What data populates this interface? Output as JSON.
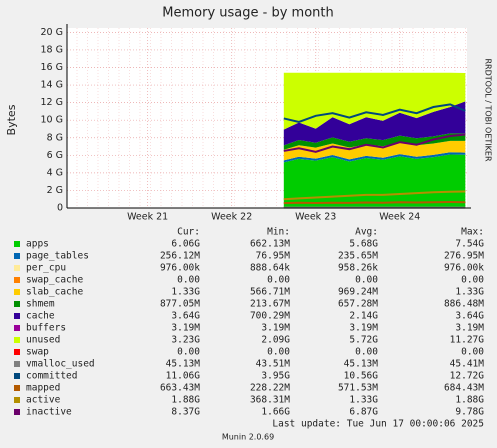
{
  "chart_data": {
    "type": "area",
    "title": "Memory usage - by month",
    "y_label": "Bytes",
    "side_label": "RRDTOOL / TOBI OETIKER",
    "x": [
      22.62,
      22.8,
      23.0,
      23.2,
      23.4,
      23.6,
      23.8,
      24.0,
      24.2,
      24.4,
      24.6,
      24.78
    ],
    "xlim": [
      20.04,
      24.8
    ],
    "xticks": [
      {
        "value": 21,
        "label": "Week 21"
      },
      {
        "value": 22,
        "label": "Week 22"
      },
      {
        "value": 23,
        "label": "Week 23"
      },
      {
        "value": 24,
        "label": "Week 24"
      }
    ],
    "ylim": [
      0,
      20.5
    ],
    "yticks": [
      0,
      {
        "value": 2,
        "label": "2 G"
      },
      {
        "value": 4,
        "label": "4 G"
      },
      {
        "value": 6,
        "label": "6 G"
      },
      {
        "value": 8,
        "label": "8 G"
      },
      {
        "value": 10,
        "label": "10 G"
      },
      {
        "value": 12,
        "label": "12 G"
      },
      {
        "value": 14,
        "label": "14 G"
      },
      {
        "value": 16,
        "label": "16 G"
      },
      {
        "value": 18,
        "label": "18 G"
      },
      {
        "value": 20,
        "label": "20 G"
      }
    ],
    "grid": true,
    "legend_headers": [
      "Cur:",
      "Min:",
      "Avg:",
      "Max:"
    ],
    "series": [
      {
        "name": "apps",
        "color": "#00cc00",
        "draw": "area",
        "values": [
          5.2,
          5.6,
          5.4,
          5.8,
          5.3,
          5.7,
          5.5,
          5.9,
          5.6,
          5.8,
          6.1,
          6.06
        ],
        "cur": "6.06G",
        "min": "662.13M",
        "avg": "5.68G",
        "max": "7.54G"
      },
      {
        "name": "page_tables",
        "color": "#0066b3",
        "draw": "area",
        "values": [
          0.23,
          0.24,
          0.23,
          0.24,
          0.24,
          0.24,
          0.23,
          0.24,
          0.24,
          0.25,
          0.25,
          0.25
        ],
        "cur": "256.12M",
        "min": "76.95M",
        "avg": "235.65M",
        "max": "276.95M"
      },
      {
        "name": "per_cpu",
        "color": "#ffeb99",
        "draw": "area",
        "values": [
          0.001,
          0.001,
          0.001,
          0.001,
          0.001,
          0.001,
          0.001,
          0.001,
          0.001,
          0.001,
          0.001,
          0.001
        ],
        "cur": "976.00k",
        "min": "888.64k",
        "avg": "958.26k",
        "max": "976.00k"
      },
      {
        "name": "swap_cache",
        "color": "#ff8000",
        "draw": "area",
        "values": [
          0,
          0,
          0,
          0,
          0,
          0,
          0,
          0,
          0,
          0,
          0,
          0
        ],
        "cur": "0.00",
        "min": "0.00",
        "avg": "0.00",
        "max": "0.00"
      },
      {
        "name": "slab_cache",
        "color": "#ffcc00",
        "draw": "area",
        "values": [
          1.2,
          1.3,
          1.25,
          1.3,
          1.35,
          1.3,
          1.3,
          1.35,
          1.3,
          1.3,
          1.3,
          1.33
        ],
        "cur": "1.33G",
        "min": "566.71M",
        "avg": "969.24M",
        "max": "1.33G"
      },
      {
        "name": "shmem",
        "color": "#008f00",
        "draw": "area",
        "values": [
          0.5,
          0.6,
          0.55,
          0.7,
          0.65,
          0.7,
          0.7,
          0.75,
          0.8,
          0.8,
          0.85,
          0.86
        ],
        "cur": "877.05M",
        "min": "213.67M",
        "avg": "657.28M",
        "max": "886.48M"
      },
      {
        "name": "cache",
        "color": "#330099",
        "draw": "area",
        "values": [
          1.8,
          2.0,
          1.6,
          2.3,
          2.0,
          2.4,
          2.2,
          2.6,
          2.3,
          2.8,
          3.0,
          3.64
        ],
        "cur": "3.64G",
        "min": "700.29M",
        "avg": "2.14G",
        "max": "3.64G"
      },
      {
        "name": "buffers",
        "color": "#990099",
        "draw": "area",
        "values": [
          0.003,
          0.003,
          0.003,
          0.003,
          0.003,
          0.003,
          0.003,
          0.003,
          0.003,
          0.003,
          0.003,
          0.003
        ],
        "cur": "3.19M",
        "min": "3.19M",
        "avg": "3.19M",
        "max": "3.19M"
      },
      {
        "name": "unused",
        "color": "#ccff00",
        "draw": "area",
        "values": [
          6.47,
          5.66,
          6.37,
          5.06,
          5.86,
          5.06,
          5.47,
          4.56,
          5.16,
          4.45,
          3.9,
          3.23
        ],
        "cur": "3.23G",
        "min": "2.09G",
        "avg": "5.72G",
        "max": "11.27G"
      },
      {
        "name": "swap",
        "color": "#ff0000",
        "draw": "area",
        "values": [
          0,
          0,
          0,
          0,
          0,
          0,
          0,
          0,
          0,
          0,
          0,
          0
        ],
        "cur": "0.00",
        "min": "0.00",
        "avg": "0.00",
        "max": "0.00"
      },
      {
        "name": "vmalloc_used",
        "color": "#808080",
        "draw": "line",
        "values": [
          0.045,
          0.045,
          0.045,
          0.045,
          0.045,
          0.045,
          0.045,
          0.045,
          0.045,
          0.045,
          0.045,
          0.045
        ],
        "cur": "45.13M",
        "min": "43.51M",
        "avg": "45.13M",
        "max": "45.41M"
      },
      {
        "name": "committed",
        "color": "#00487d",
        "draw": "line",
        "values": [
          10.2,
          9.8,
          10.5,
          10.8,
          10.3,
          10.9,
          10.6,
          11.2,
          10.8,
          11.5,
          11.8,
          11.06
        ],
        "cur": "11.06G",
        "min": "3.95G",
        "avg": "10.56G",
        "max": "12.72G"
      },
      {
        "name": "mapped",
        "color": "#b35a00",
        "draw": "line",
        "values": [
          0.55,
          0.6,
          0.57,
          0.6,
          0.58,
          0.62,
          0.6,
          0.65,
          0.62,
          0.66,
          0.68,
          0.66
        ],
        "cur": "663.43M",
        "min": "228.22M",
        "avg": "571.53M",
        "max": "684.43M"
      },
      {
        "name": "active",
        "color": "#b38f00",
        "draw": "line",
        "values": [
          1.0,
          1.1,
          1.2,
          1.3,
          1.4,
          1.5,
          1.5,
          1.6,
          1.7,
          1.8,
          1.85,
          1.88
        ],
        "cur": "1.88G",
        "min": "368.31M",
        "avg": "1.33G",
        "max": "1.88G"
      },
      {
        "name": "inactive",
        "color": "#6b006b",
        "draw": "line",
        "values": [
          6.5,
          6.8,
          6.4,
          7.0,
          6.7,
          7.2,
          6.9,
          7.5,
          7.2,
          7.8,
          8.2,
          8.37
        ],
        "cur": "8.37G",
        "min": "1.66G",
        "avg": "6.87G",
        "max": "9.78G"
      }
    ],
    "last_update": "Last update: Tue Jun 17 00:00:06 2025",
    "footer": "Munin 2.0.69"
  }
}
